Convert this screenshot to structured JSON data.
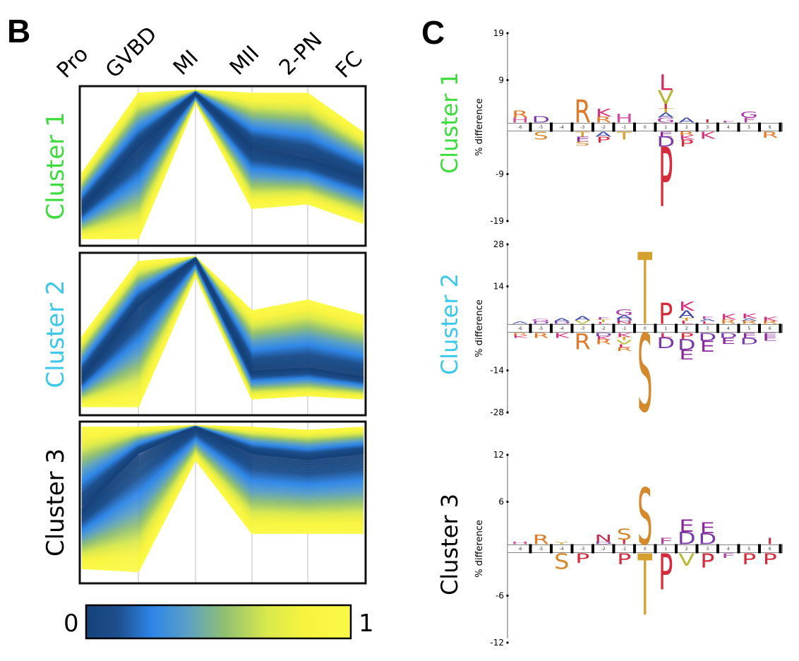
{
  "figure": {
    "panel_b_letter": "B",
    "panel_c_letter": "C"
  },
  "chart_data": [
    {
      "type": "line",
      "panel": "B",
      "title": "",
      "description": "Parallel-coordinate expression profiles per cluster, lines colored by normalized value",
      "x": [
        "Pro",
        "GVBD",
        "MI",
        "MII",
        "2-PN",
        "FC"
      ],
      "ylim": [
        0,
        1
      ],
      "grid": true,
      "colorbar": {
        "min_label": "0",
        "max_label": "1",
        "stops": [
          "#16427a",
          "#1d4f8c",
          "#2e86e8",
          "#5a9fc6",
          "#8fbf74",
          "#d8e84c",
          "#f7f43f",
          "#fbf948"
        ]
      },
      "series": [
        {
          "name": "Cluster 1",
          "label_color": "#3ddc3d",
          "median": [
            0.22,
            0.62,
            0.98,
            0.62,
            0.55,
            0.42
          ],
          "upper_envelope": [
            0.45,
            0.98,
            1.0,
            0.98,
            0.98,
            0.72
          ],
          "lower_envelope": [
            0.02,
            0.02,
            0.92,
            0.22,
            0.25,
            0.12
          ]
        },
        {
          "name": "Cluster 2",
          "label_color": "#3cc8e8",
          "median": [
            0.22,
            0.68,
            0.99,
            0.26,
            0.28,
            0.22
          ],
          "upper_envelope": [
            0.48,
            0.97,
            1.0,
            0.65,
            0.72,
            0.62
          ],
          "lower_envelope": [
            0.03,
            0.03,
            0.88,
            0.08,
            0.1,
            0.08
          ]
        },
        {
          "name": "Cluster 3",
          "label_color": "#000000",
          "median": [
            0.45,
            0.82,
            0.99,
            0.82,
            0.78,
            0.82
          ],
          "upper_envelope": [
            0.99,
            0.99,
            1.0,
            0.99,
            0.97,
            0.99
          ],
          "lower_envelope": [
            0.07,
            0.05,
            0.78,
            0.3,
            0.3,
            0.3
          ]
        }
      ]
    },
    {
      "type": "sequence-logo",
      "panel": "C",
      "ylabel": "% difference",
      "positions": [
        "-6",
        "-5",
        "-4",
        "-3",
        "-2",
        "-1",
        "0",
        "1",
        "2",
        "3",
        "4",
        "5",
        "6"
      ],
      "residue_colors": {
        "R": "#e07a2a",
        "K": "#d62f7c",
        "H": "#d64c9c",
        "S": "#d48a2c",
        "T": "#d4a030",
        "D": "#7a3aa8",
        "E": "#8a2a9a",
        "P": "#d42c3c",
        "L": "#d42c5c",
        "V": "#b8b830",
        "I": "#c8344c",
        "A": "#3a4aa8",
        "G": "#a83aa8",
        "F": "#b040a0",
        "N": "#c03050",
        "Y": "#d0a030",
        "Q": "#b0409a",
        "C": "#c07030"
      },
      "logos": [
        {
          "name": "Cluster 1",
          "label_color": "#3ddc3d",
          "yticks": [
            "19",
            "9",
            "-9",
            "-19"
          ],
          "ylim": [
            -19,
            19
          ],
          "above": [
            [
              [
                "H",
                1.0
              ],
              [
                "R",
                1.4
              ]
            ],
            [
              [
                "D",
                1.3
              ]
            ],
            [],
            [
              [
                "R",
                4.6
              ]
            ],
            [
              [
                "R",
                1.2
              ],
              [
                "K",
                1.6
              ]
            ],
            [
              [
                "H",
                1.8
              ]
            ],
            [],
            [
              [
                "G",
                1.0
              ],
              [
                "A",
                1.0
              ],
              [
                "T",
                0.8
              ],
              [
                "I",
                1.0
              ],
              [
                "V",
                2.8
              ],
              [
                "L",
                3.2
              ]
            ],
            [
              [
                "A",
                1.0
              ]
            ],
            [
              [
                "I",
                0.6
              ]
            ],
            [
              [
                "F",
                0.4
              ]
            ],
            [
              [
                "F",
                1.0
              ],
              [
                "G",
                1.2
              ]
            ],
            []
          ],
          "below": [
            [],
            [
              [
                "S",
                1.6
              ]
            ],
            [],
            [
              [
                "T",
                1.0
              ],
              [
                "E",
                1.0
              ],
              [
                "S",
                0.8
              ]
            ],
            [
              [
                "A",
                1.0
              ],
              [
                "P",
                1.2
              ]
            ],
            [
              [
                "T",
                1.6
              ]
            ],
            [],
            [
              [
                "E",
                1.0
              ],
              [
                "D",
                2.0
              ],
              [
                "P",
                12.0
              ]
            ],
            [
              [
                "R",
                0.8
              ],
              [
                "K",
                0.8
              ],
              [
                "P",
                1.4
              ]
            ],
            [
              [
                "K",
                1.4
              ]
            ],
            [],
            [],
            [
              [
                "R",
                1.2
              ]
            ]
          ]
        },
        {
          "name": "Cluster 2",
          "label_color": "#3cc8e8",
          "yticks": [
            "28",
            "14",
            "-14",
            "-28"
          ],
          "ylim": [
            -28,
            28
          ],
          "above": [
            [
              [
                "A",
                0.8
              ]
            ],
            [
              [
                "D",
                0.8
              ],
              [
                "G",
                0.8
              ]
            ],
            [
              [
                "D",
                0.8
              ],
              [
                "A",
                1.0
              ]
            ],
            [
              [
                "V",
                1.2
              ],
              [
                "A",
                1.4
              ]
            ],
            [
              [
                "L",
                0.6
              ],
              [
                "T",
                0.8
              ],
              [
                "F",
                0.8
              ]
            ],
            [
              [
                "N",
                0.8
              ],
              [
                "D",
                1.0
              ],
              [
                "A",
                1.0
              ],
              [
                "G",
                2.0
              ]
            ],
            [
              [
                "T",
                24.0
              ]
            ],
            [
              [
                "P",
                7.0
              ]
            ],
            [
              [
                "L",
                1.0
              ],
              [
                "T",
                1.0
              ],
              [
                "A",
                2.4
              ],
              [
                "K",
                3.0
              ]
            ],
            [
              [
                "L",
                0.8
              ],
              [
                "A",
                0.8
              ],
              [
                "F",
                0.8
              ]
            ],
            [
              [
                "R",
                1.4
              ],
              [
                "K",
                1.8
              ]
            ],
            [
              [
                "R",
                1.0
              ],
              [
                "A",
                0.8
              ],
              [
                "K",
                1.6
              ]
            ],
            [
              [
                "R",
                1.0
              ],
              [
                "K",
                1.4
              ]
            ]
          ],
          "below": [
            [
              [
                "R",
                0.8
              ],
              [
                "K",
                0.8
              ]
            ],
            [
              [
                "R",
                1.6
              ]
            ],
            [
              [
                "K",
                1.6
              ]
            ],
            [
              [
                "R",
                5.4
              ]
            ],
            [
              [
                "D",
                1.0
              ],
              [
                "K",
                1.2
              ],
              [
                "R",
                1.6
              ]
            ],
            [
              [
                "K",
                1.4
              ],
              [
                "T",
                1.0
              ],
              [
                "V",
                1.4
              ],
              [
                "L",
                1.0
              ],
              [
                "R",
                1.2
              ]
            ],
            [
              [
                "S",
                26.0
              ]
            ],
            [
              [
                "L",
                1.4
              ],
              [
                "D",
                3.6
              ]
            ],
            [
              [
                "P",
                2.0
              ],
              [
                "D",
                3.6
              ],
              [
                "E",
                3.2
              ]
            ],
            [
              [
                "D",
                2.6
              ],
              [
                "E",
                3.6
              ]
            ],
            [
              [
                "D",
                1.6
              ],
              [
                "E",
                2.0
              ]
            ],
            [
              [
                "E",
                1.6
              ],
              [
                "D",
                2.2
              ]
            ],
            [
              [
                "E",
                1.0
              ],
              [
                "E",
                1.6
              ]
            ]
          ]
        },
        {
          "name": "Cluster 3",
          "label_color": "#000000",
          "yticks": [
            "12",
            "6",
            "-6",
            "-12"
          ],
          "ylim": [
            -12,
            12
          ],
          "above": [
            [
              [
                "H",
                0.3
              ]
            ],
            [
              [
                "R",
                1.2
              ]
            ],
            [
              [
                "Y",
                0.3
              ]
            ],
            [],
            [
              [
                "D",
                0.3
              ],
              [
                "N",
                0.9
              ]
            ],
            [
              [
                "I",
                0.6
              ],
              [
                "S",
                1.4
              ]
            ],
            [
              [
                "S",
                7.2
              ]
            ],
            [
              [
                "F",
                0.8
              ]
            ],
            [
              [
                "D",
                1.6
              ],
              [
                "E",
                1.6
              ]
            ],
            [
              [
                "D",
                1.4
              ],
              [
                "E",
                1.4
              ]
            ],
            [],
            [],
            [
              [
                "I",
                0.8
              ]
            ]
          ],
          "below": [
            [],
            [],
            [
              [
                "S",
                2.0
              ]
            ],
            [
              [
                "P",
                1.2
              ]
            ],
            [],
            [
              [
                "P",
                1.4
              ]
            ],
            [
              [
                "T",
                7.8
              ]
            ],
            [
              [
                "P",
                4.6
              ]
            ],
            [
              [
                "V",
                1.6
              ]
            ],
            [
              [
                "P",
                1.8
              ]
            ],
            [
              [
                "F",
                0.6
              ]
            ],
            [
              [
                "P",
                1.4
              ]
            ],
            [
              [
                "P",
                1.4
              ]
            ]
          ]
        }
      ]
    }
  ]
}
